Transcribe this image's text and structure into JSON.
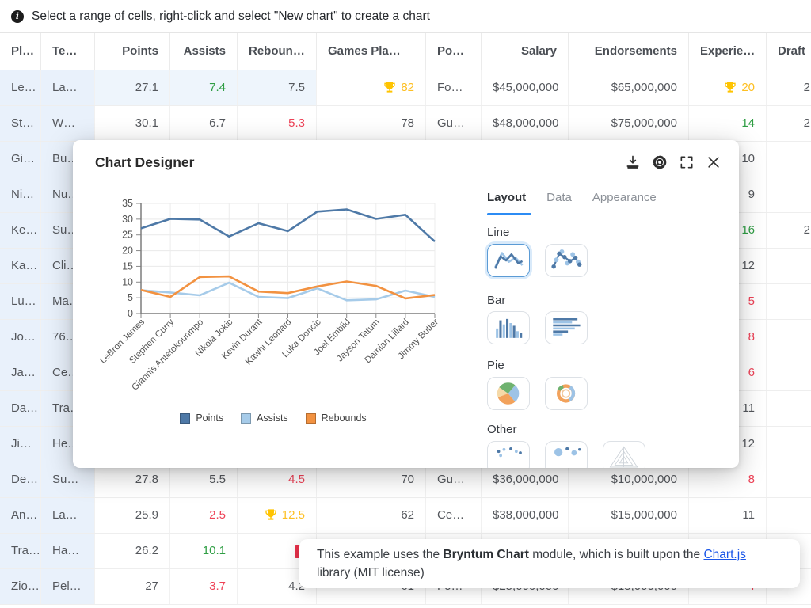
{
  "infobar": {
    "text": "Select a range of cells, right-click and select \"New chart\" to create a chart"
  },
  "table": {
    "columns": [
      {
        "key": "player",
        "label": "Pl…",
        "width": 52,
        "halign": "left",
        "align": "left"
      },
      {
        "key": "team",
        "label": "Te…",
        "width": 68,
        "halign": "left",
        "align": "left"
      },
      {
        "key": "points",
        "label": "Points",
        "width": 95,
        "halign": "right",
        "align": "right"
      },
      {
        "key": "assists",
        "label": "Assists",
        "width": 85,
        "halign": "right",
        "align": "right"
      },
      {
        "key": "rebounds",
        "label": "Reboun…",
        "width": 100,
        "halign": "left",
        "align": "right"
      },
      {
        "key": "games_played",
        "label": "Games Pla…",
        "width": 138,
        "halign": "left",
        "align": "right"
      },
      {
        "key": "position",
        "label": "Po…",
        "width": 70,
        "halign": "left",
        "align": "left"
      },
      {
        "key": "salary",
        "label": "Salary",
        "width": 110,
        "halign": "right",
        "align": "right"
      },
      {
        "key": "endorsements",
        "label": "Endorsements",
        "width": 152,
        "halign": "right",
        "align": "right"
      },
      {
        "key": "experience",
        "label": "Experie…",
        "width": 98,
        "halign": "left",
        "align": "right"
      },
      {
        "key": "draft",
        "label": "Draft",
        "width": 70,
        "halign": "left",
        "align": "right"
      }
    ],
    "rows": [
      [
        "Le…",
        "La…",
        "27.1",
        {
          "v": "7.4",
          "c": "green"
        },
        "7.5",
        {
          "v": "82",
          "c": "gold",
          "t": true
        },
        "Fo…",
        "$45,000,000",
        "$65,000,000",
        {
          "v": "20",
          "c": "gold",
          "t": true
        },
        "2"
      ],
      [
        "St…",
        "W…",
        "30.1",
        "6.7",
        {
          "v": "5.3",
          "c": "red"
        },
        "78",
        "Gu…",
        "$48,000,000",
        "$75,000,000",
        {
          "v": "14",
          "c": "green"
        },
        "2"
      ],
      [
        "Gi…",
        "Bu…",
        "",
        "",
        "",
        "",
        "",
        "",
        "",
        "10",
        ""
      ],
      [
        "Ni…",
        "Nu…",
        "",
        "",
        "",
        "",
        "",
        "",
        "",
        "9",
        ""
      ],
      [
        "Ke…",
        "Su…",
        "",
        "",
        "",
        "",
        "",
        "",
        "",
        {
          "v": "16",
          "c": "green"
        },
        "2"
      ],
      [
        "Ka…",
        "Cli…",
        "",
        "",
        "",
        "",
        "",
        "",
        "",
        "12",
        ""
      ],
      [
        "Lu…",
        "Ma…",
        "",
        "",
        "",
        "",
        "",
        "",
        "",
        {
          "v": "5",
          "c": "red"
        },
        ""
      ],
      [
        "Jo…",
        "76…",
        "",
        "",
        "",
        "",
        "",
        "",
        "",
        {
          "v": "8",
          "c": "red"
        },
        ""
      ],
      [
        "Ja…",
        "Ce…",
        "",
        "",
        "",
        "",
        "",
        "",
        "",
        {
          "v": "6",
          "c": "red"
        },
        ""
      ],
      [
        "Da…",
        "Tra…",
        "",
        "",
        "",
        "",
        "",
        "",
        "",
        "11",
        ""
      ],
      [
        "Ji…",
        "He…",
        "",
        "",
        "",
        "",
        "",
        "",
        "",
        "12",
        ""
      ],
      [
        "De…",
        "Su…",
        "27.8",
        "5.5",
        {
          "v": "4.5",
          "c": "red"
        },
        "70",
        "Gu…",
        "$36,000,000",
        "$10,000,000",
        {
          "v": "8",
          "c": "red"
        },
        ""
      ],
      [
        "An…",
        "La…",
        "25.9",
        {
          "v": "2.5",
          "c": "red"
        },
        {
          "v": "12.5",
          "c": "gold",
          "t": true
        },
        "62",
        "Ce…",
        "$38,000,000",
        "$15,000,000",
        "11",
        ""
      ],
      [
        "Tra…",
        "Ha…",
        "26.2",
        {
          "v": "10.1",
          "c": "green"
        },
        "",
        "",
        "",
        "",
        "",
        "",
        ""
      ],
      [
        "Zio…",
        "Pel…",
        "27",
        {
          "v": "3.7",
          "c": "red"
        },
        "4.2",
        "61",
        "Fo…",
        "$25,000,000",
        "$15,000,000",
        {
          "v": "4",
          "c": "red"
        },
        ""
      ]
    ]
  },
  "dialog": {
    "title": "Chart Designer",
    "toolbar_icons": [
      "download",
      "settings",
      "maximize",
      "close"
    ],
    "tabs": [
      {
        "label": "Layout",
        "active": true
      },
      {
        "label": "Data",
        "active": false
      },
      {
        "label": "Appearance",
        "active": false
      }
    ],
    "sections": [
      {
        "title": "Line",
        "thumbs": [
          {
            "type": "line",
            "selected": true
          },
          {
            "type": "line-points",
            "selected": false
          }
        ]
      },
      {
        "title": "Bar",
        "thumbs": [
          {
            "type": "bar-vertical",
            "selected": false
          },
          {
            "type": "bar-horizontal",
            "selected": false
          }
        ]
      },
      {
        "title": "Pie",
        "thumbs": [
          {
            "type": "pie",
            "selected": false
          },
          {
            "type": "doughnut",
            "selected": false
          }
        ]
      },
      {
        "title": "Other",
        "thumbs": [
          {
            "type": "scatter",
            "selected": false
          },
          {
            "type": "bubble",
            "selected": false
          },
          {
            "type": "radar",
            "selected": false
          }
        ]
      }
    ]
  },
  "chart_data": {
    "type": "line",
    "categories": [
      "LeBron James",
      "Stephen Curry",
      "Giannis Antetokounmpo",
      "Nikola Jokic",
      "Kevin Durant",
      "Kawhi Leonard",
      "Luka Doncic",
      "Joel Embiid",
      "Jayson Tatum",
      "Damian Lillard",
      "Jimmy Butler"
    ],
    "series": [
      {
        "name": "Points",
        "color": "#4e79a7",
        "values": [
          27.1,
          30.1,
          29.9,
          24.5,
          28.7,
          26.2,
          32.4,
          33.1,
          30.1,
          31.4,
          22.9
        ]
      },
      {
        "name": "Assists",
        "color": "#a6cbe9",
        "values": [
          7.4,
          6.7,
          5.8,
          9.8,
          5.3,
          4.9,
          8.0,
          4.2,
          4.5,
          7.3,
          5.3
        ]
      },
      {
        "name": "Rebounds",
        "color": "#f29241",
        "values": [
          7.5,
          5.3,
          11.6,
          11.8,
          7.0,
          6.5,
          8.6,
          10.2,
          8.8,
          4.8,
          5.9
        ]
      }
    ],
    "ylim": [
      0,
      35
    ],
    "yticks": [
      0,
      5,
      10,
      15,
      20,
      25,
      30,
      35
    ],
    "grid": true,
    "legend_position": "bottom"
  },
  "toast": {
    "text_before": "This example uses the ",
    "bold": "Bryntum Chart",
    "text_middle": " module, which is built upon the ",
    "link": "Chart.js",
    "text_after": " library (MIT license)"
  },
  "colors": {
    "accent": "#2c8cf4",
    "column_highlight": "#e9f1fb",
    "row_highlight": "#eef5fc",
    "cell_red": "#ee4257",
    "cell_green": "#2f9e44",
    "cell_gold": "#fdbf23",
    "link": "#1a56e8"
  }
}
